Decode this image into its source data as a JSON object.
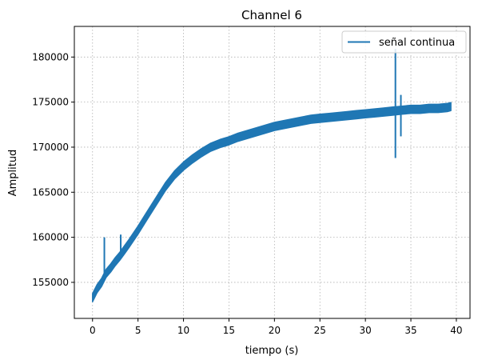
{
  "chart_data": {
    "type": "line",
    "title": "Channel 6",
    "xlabel": "tiempo (s)",
    "ylabel": "Amplitud",
    "xlim": [
      -2,
      41.5
    ],
    "ylim": [
      151000,
      183400
    ],
    "xticks": [
      0,
      5,
      10,
      15,
      20,
      25,
      30,
      35,
      40
    ],
    "xtick_labels": [
      "0",
      "5",
      "10",
      "15",
      "20",
      "25",
      "30",
      "35",
      "40"
    ],
    "yticks": [
      155000,
      160000,
      165000,
      170000,
      175000,
      180000
    ],
    "ytick_labels": [
      "155000",
      "160000",
      "165000",
      "170000",
      "175000",
      "180000"
    ],
    "grid": true,
    "legend_position": "top-right",
    "series": [
      {
        "name": "señal continua",
        "color": "#1f77b4",
        "x": [
          0,
          0.5,
          1,
          1.5,
          2,
          2.5,
          3,
          3.5,
          4,
          5,
          6,
          7,
          8,
          9,
          10,
          11,
          12,
          13,
          14,
          15,
          16,
          17,
          18,
          19,
          20,
          21,
          22,
          23,
          24,
          25,
          26,
          27,
          28,
          29,
          30,
          31,
          32,
          33,
          34,
          35,
          36,
          37,
          38,
          39,
          39.4
        ],
        "y": [
          153300,
          154300,
          155000,
          156000,
          156600,
          157300,
          157900,
          158600,
          159300,
          160800,
          162400,
          164000,
          165600,
          166900,
          167900,
          168700,
          169400,
          170000,
          170400,
          170700,
          171100,
          171400,
          171700,
          172000,
          172300,
          172500,
          172700,
          172900,
          173100,
          173200,
          173300,
          173400,
          173500,
          173600,
          173700,
          173800,
          173900,
          174000,
          174100,
          174200,
          174200,
          174300,
          174300,
          174400,
          174500
        ]
      }
    ],
    "spikes": [
      {
        "x": 1.3,
        "y_min": 155500,
        "y_max": 160000
      },
      {
        "x": 3.1,
        "y_min": 158000,
        "y_max": 160300
      },
      {
        "x": 33.3,
        "y_min": 168800,
        "y_max": 180900
      },
      {
        "x": 33.9,
        "y_min": 171200,
        "y_max": 175800
      }
    ],
    "band_halfwidth": 450
  }
}
